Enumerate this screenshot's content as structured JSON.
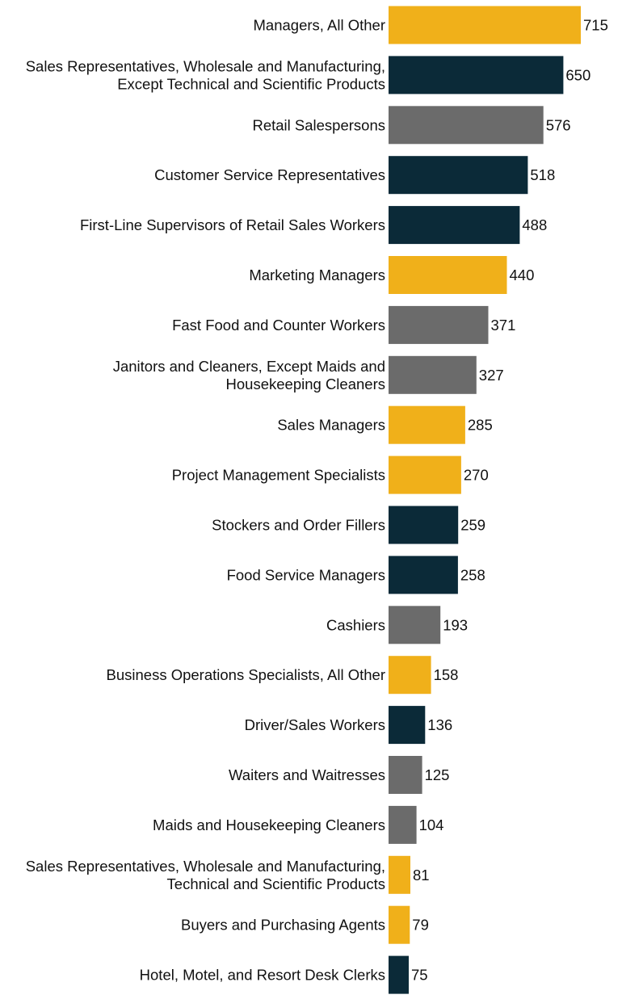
{
  "chart_data": {
    "type": "bar",
    "orientation": "horizontal",
    "title": "",
    "xlabel": "",
    "ylabel": "",
    "grid": false,
    "colors": {
      "gold": "#F0B01A",
      "navy": "#0B2A38",
      "gray": "#6B6B6B"
    },
    "bars": [
      {
        "label": [
          "Managers, All Other"
        ],
        "value": 715,
        "color": "gold"
      },
      {
        "label": [
          "Sales Representatives, Wholesale and Manufacturing,",
          "Except Technical and Scientific Products"
        ],
        "value": 650,
        "color": "navy"
      },
      {
        "label": [
          "Retail Salespersons"
        ],
        "value": 576,
        "color": "gray"
      },
      {
        "label": [
          "Customer Service Representatives"
        ],
        "value": 518,
        "color": "navy"
      },
      {
        "label": [
          "First-Line Supervisors of Retail Sales Workers"
        ],
        "value": 488,
        "color": "navy"
      },
      {
        "label": [
          "Marketing Managers"
        ],
        "value": 440,
        "color": "gold"
      },
      {
        "label": [
          "Fast Food and Counter Workers"
        ],
        "value": 371,
        "color": "gray"
      },
      {
        "label": [
          "Janitors and Cleaners, Except Maids and",
          "Housekeeping Cleaners"
        ],
        "value": 327,
        "color": "gray"
      },
      {
        "label": [
          "Sales Managers"
        ],
        "value": 285,
        "color": "gold"
      },
      {
        "label": [
          "Project Management Specialists"
        ],
        "value": 270,
        "color": "gold"
      },
      {
        "label": [
          "Stockers and Order Fillers"
        ],
        "value": 259,
        "color": "navy"
      },
      {
        "label": [
          "Food Service Managers"
        ],
        "value": 258,
        "color": "navy"
      },
      {
        "label": [
          "Cashiers"
        ],
        "value": 193,
        "color": "gray"
      },
      {
        "label": [
          "Business Operations Specialists, All Other"
        ],
        "value": 158,
        "color": "gold"
      },
      {
        "label": [
          "Driver/Sales Workers"
        ],
        "value": 136,
        "color": "navy"
      },
      {
        "label": [
          "Waiters and Waitresses"
        ],
        "value": 125,
        "color": "gray"
      },
      {
        "label": [
          "Maids and Housekeeping Cleaners"
        ],
        "value": 104,
        "color": "gray"
      },
      {
        "label": [
          "Sales Representatives, Wholesale and Manufacturing,",
          "Technical and Scientific Products"
        ],
        "value": 81,
        "color": "gold"
      },
      {
        "label": [
          "Buyers and Purchasing Agents"
        ],
        "value": 79,
        "color": "gold"
      },
      {
        "label": [
          "Hotel, Motel, and Resort Desk Clerks"
        ],
        "value": 75,
        "color": "navy"
      }
    ]
  }
}
